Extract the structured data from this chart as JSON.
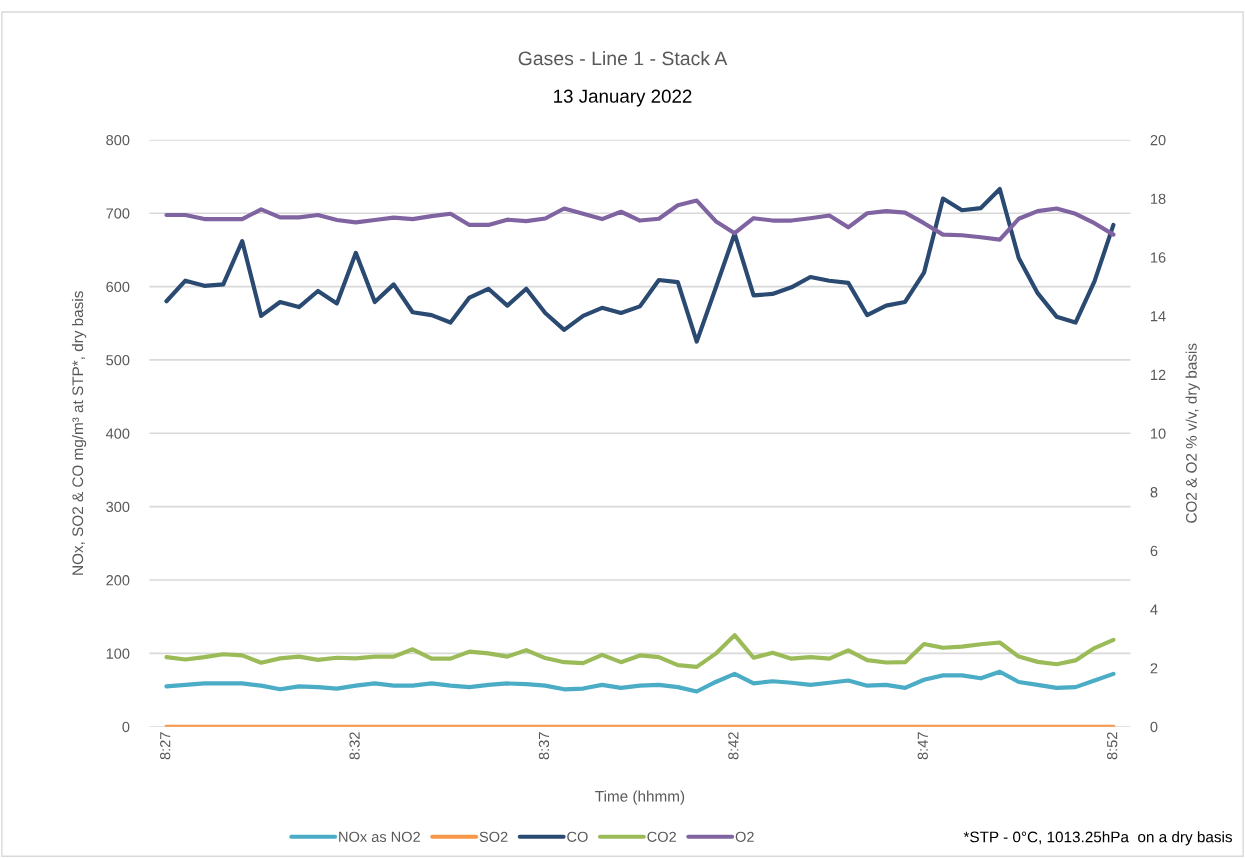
{
  "chart_data": {
    "type": "line",
    "title": "Gases - Line 1 - Stack A",
    "subtitle": "13 January 2022",
    "xlabel": "Time (hhmm)",
    "ylabel": "NOx, SO2 & CO mg/m³ at STP*, dry basis",
    "y2label": "CO2 & O2 % v/v, dry basis",
    "categories": [
      "8:27",
      null,
      null,
      null,
      null,
      null,
      null,
      null,
      null,
      null,
      "8:32",
      null,
      null,
      null,
      null,
      null,
      null,
      null,
      null,
      null,
      "8:37",
      null,
      null,
      null,
      null,
      null,
      null,
      null,
      null,
      null,
      "8:42",
      null,
      null,
      null,
      null,
      null,
      null,
      null,
      null,
      null,
      "8:47",
      null,
      null,
      null,
      null,
      null,
      null,
      null,
      null,
      null,
      "8:52"
    ],
    "series": [
      {
        "name": "NOx as NO2",
        "color": "#4bacc6",
        "values": [
          55,
          57,
          59,
          59,
          59,
          56,
          51,
          55,
          54,
          52,
          56,
          59,
          56,
          56,
          59,
          56,
          54,
          57,
          59,
          58,
          56,
          51,
          52,
          57,
          53,
          56,
          57,
          54,
          48,
          61,
          72,
          59,
          62,
          60,
          57,
          60,
          63,
          56,
          57,
          53,
          64,
          70,
          70,
          66,
          75,
          61,
          57,
          53,
          54,
          63,
          72
        ]
      },
      {
        "name": "SO2",
        "color": "#f79646",
        "values": [
          0,
          0,
          0,
          0,
          0,
          0,
          0,
          0,
          0,
          0,
          0,
          0,
          0,
          0,
          0,
          0,
          0,
          0,
          0,
          0,
          0,
          0,
          0,
          0,
          0,
          0,
          0,
          0,
          0,
          0,
          0,
          0,
          0,
          0,
          0,
          0,
          0,
          0,
          0,
          0,
          0,
          0,
          0,
          0,
          0,
          0,
          0,
          0,
          0,
          0,
          0
        ]
      },
      {
        "name": "CO",
        "color": "#2a4a72",
        "values": [
          580,
          608,
          601,
          603,
          662,
          560,
          579,
          572,
          594,
          577,
          646,
          579,
          603,
          565,
          561,
          551,
          585,
          597,
          574,
          597,
          564,
          541,
          560,
          571,
          564,
          573,
          609,
          606,
          525,
          598,
          672,
          588,
          590,
          599,
          613,
          608,
          605,
          561,
          574,
          579,
          619,
          720,
          704,
          707,
          733,
          639,
          591,
          559,
          551,
          607,
          684
        ]
      },
      {
        "name": "CO2",
        "color": "#9bbb59",
        "axis": "y2",
        "values": [
          2.37,
          2.29,
          2.37,
          2.47,
          2.43,
          2.18,
          2.33,
          2.39,
          2.28,
          2.35,
          2.33,
          2.39,
          2.39,
          2.64,
          2.32,
          2.32,
          2.56,
          2.5,
          2.39,
          2.61,
          2.34,
          2.2,
          2.17,
          2.45,
          2.2,
          2.43,
          2.37,
          2.1,
          2.04,
          2.49,
          3.12,
          2.35,
          2.52,
          2.32,
          2.37,
          2.32,
          2.6,
          2.27,
          2.19,
          2.2,
          2.82,
          2.69,
          2.73,
          2.81,
          2.87,
          2.39,
          2.21,
          2.13,
          2.26,
          2.68,
          2.96
        ]
      },
      {
        "name": "O2",
        "color": "#8064a2",
        "axis": "y2",
        "values": [
          17.44,
          17.44,
          17.3,
          17.3,
          17.3,
          17.63,
          17.36,
          17.36,
          17.44,
          17.27,
          17.19,
          17.27,
          17.35,
          17.3,
          17.4,
          17.48,
          17.1,
          17.1,
          17.28,
          17.23,
          17.32,
          17.66,
          17.48,
          17.3,
          17.55,
          17.25,
          17.31,
          17.77,
          17.93,
          17.23,
          16.82,
          17.33,
          17.25,
          17.25,
          17.33,
          17.42,
          17.02,
          17.5,
          17.57,
          17.52,
          17.16,
          16.77,
          16.75,
          16.68,
          16.6,
          17.31,
          17.57,
          17.66,
          17.48,
          17.16,
          16.77
        ]
      }
    ],
    "ylim": [
      0,
      800
    ],
    "yticks": [
      0,
      100,
      200,
      300,
      400,
      500,
      600,
      700,
      800
    ],
    "y2lim": [
      0,
      20
    ],
    "y2ticks": [
      0,
      2,
      4,
      6,
      8,
      10,
      12,
      14,
      16,
      18,
      20
    ],
    "grid": "y",
    "legend": "bottom",
    "marker": "none",
    "line_style": "solid",
    "annotations": [
      "*STP - 0°C, 1013.25hPa  on a dry basis"
    ]
  }
}
